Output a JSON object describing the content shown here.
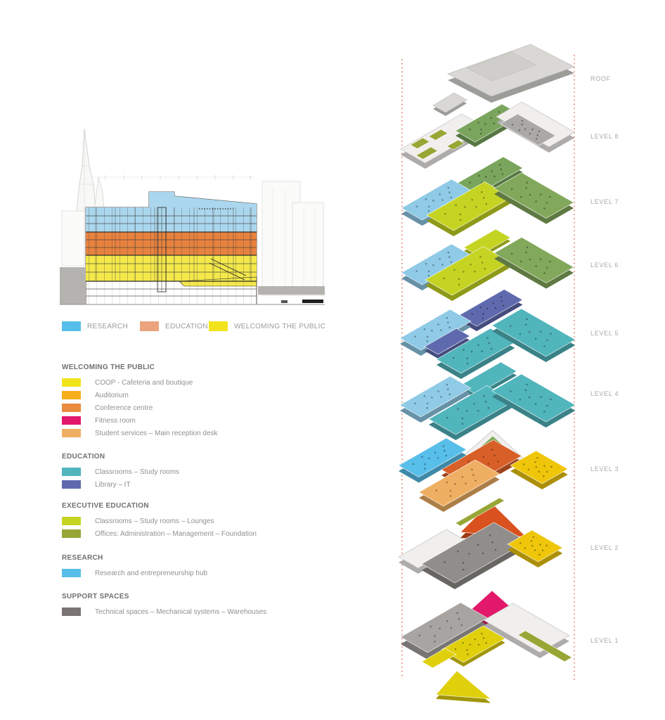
{
  "palette": {
    "guide_dotted": "#E4694A",
    "section_blue": "#ABD7EE",
    "section_orange": "#E8823F",
    "section_yellow": "#F4E84B",
    "research_blue": "#58BEEA",
    "education_salmon": "#EBA37E",
    "welcome_yellow": "#F2E41C",
    "coop_yellow": "#F2E41C",
    "auditorium_amber": "#F7AE1C",
    "conference_orange": "#E98C3E",
    "fitness_pink": "#E2186B",
    "student_tan": "#EFAF62",
    "edu_teal": "#51B5BC",
    "library_purple": "#5F6AAE",
    "exec_chartreuse": "#C5D422",
    "exec_olive": "#97A635",
    "support_gray": "#7A7475",
    "axon_blue": "#8FCAE6",
    "axon_green": "#82A85B",
    "garden_green": "#79A55C",
    "plate": "#F0EFED",
    "roof_gray": "#D9D8D5",
    "roof_mid": "#CFCECB",
    "support_mid": "#ABA9A6",
    "gray_plate": "#908D8A",
    "gray_dark": "#A7A4A1",
    "conference_deep": "#D95F28",
    "audit_red": "#D9511E",
    "gold": "#EFC60A",
    "l1_yellow": "#E0D00C"
  },
  "section_legend": {
    "items": [
      {
        "label": "RESEARCH",
        "color_key": "research_blue"
      },
      {
        "label": "EDUCATION",
        "color_key": "education_salmon"
      },
      {
        "label": "WELCOMING THE PUBLIC",
        "color_key": "welcome_yellow"
      }
    ]
  },
  "legend": {
    "groups": [
      {
        "header": "WELCOMING THE PUBLIC",
        "items": [
          {
            "label": "COOP - Cafeteria and boutique",
            "color_key": "coop_yellow"
          },
          {
            "label": "Auditorium",
            "color_key": "auditorium_amber"
          },
          {
            "label": "Conference centre",
            "color_key": "conference_orange"
          },
          {
            "label": "Fitness room",
            "color_key": "fitness_pink"
          },
          {
            "label": "Student services – Main reception desk",
            "color_key": "student_tan"
          }
        ]
      },
      {
        "header": "EDUCATION",
        "items": [
          {
            "label": "Classrooms – Study rooms",
            "color_key": "edu_teal"
          },
          {
            "label": "Library – IT",
            "color_key": "library_purple"
          }
        ]
      },
      {
        "header": "EXECUTIVE EDUCATION",
        "items": [
          {
            "label": "Classrooms – Study rooms – Lounges",
            "color_key": "exec_chartreuse"
          },
          {
            "label": "Offices:  Administration – Management – Foundation",
            "color_key": "exec_olive"
          }
        ]
      },
      {
        "header": "RESEARCH",
        "items": [
          {
            "label": "Research and entrepreneurship hub",
            "color_key": "research_blue"
          }
        ]
      },
      {
        "header": "SUPPORT SPACES",
        "items": [
          {
            "label": "Technical spaces – Mechanical systems – Warehouses",
            "color_key": "support_gray"
          }
        ]
      }
    ]
  },
  "axon": {
    "labels": [
      "ROOF",
      "LEVEL 8",
      "LEVEL 7",
      "LEVEL 6",
      "LEVEL 5",
      "LEVEL 4",
      "LEVEL 3",
      "LEVEL 2",
      "LEVEL 1"
    ]
  }
}
